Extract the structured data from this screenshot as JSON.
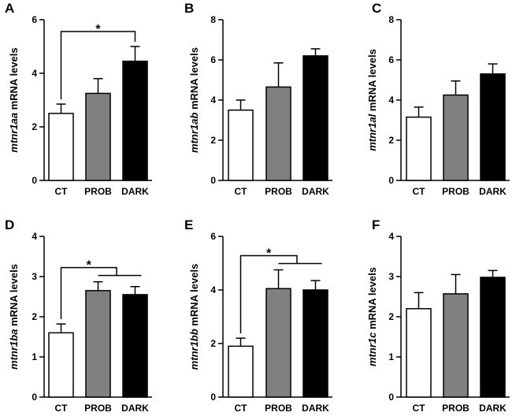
{
  "chart_data": [
    {
      "type": "bar",
      "panel": "A",
      "ylabel_gene": "mtnr1aa",
      "ylabel_rest": "mRNA levels",
      "categories": [
        "CT",
        "PROB",
        "DARK"
      ],
      "values": [
        2.5,
        3.25,
        4.45
      ],
      "errors": [
        0.35,
        0.55,
        0.55
      ],
      "bar_colors": [
        "#ffffff",
        "#808080",
        "#000000"
      ],
      "ylim": [
        0,
        6
      ],
      "yticks": [
        "0",
        "2",
        "4",
        "6"
      ],
      "significance": "*"
    },
    {
      "type": "bar",
      "panel": "B",
      "ylabel_gene": "mtnr1ab",
      "ylabel_rest": "mRNA levels",
      "categories": [
        "CT",
        "PROB",
        "DARK"
      ],
      "values": [
        3.5,
        4.65,
        6.2
      ],
      "errors": [
        0.5,
        1.2,
        0.35
      ],
      "bar_colors": [
        "#ffffff",
        "#808080",
        "#000000"
      ],
      "ylim": [
        0,
        8
      ],
      "yticks": [
        "0",
        "2",
        "4",
        "6",
        "8"
      ],
      "significance": ""
    },
    {
      "type": "bar",
      "panel": "C",
      "ylabel_gene": "mtnr1al",
      "ylabel_rest": "mRNA levels",
      "categories": [
        "CT",
        "PROB",
        "DARK"
      ],
      "values": [
        3.15,
        4.25,
        5.3
      ],
      "errors": [
        0.5,
        0.7,
        0.5
      ],
      "bar_colors": [
        "#ffffff",
        "#808080",
        "#000000"
      ],
      "ylim": [
        0,
        8
      ],
      "yticks": [
        "0",
        "2",
        "4",
        "6",
        "8"
      ],
      "significance": ""
    },
    {
      "type": "bar",
      "panel": "D",
      "ylabel_gene": "mtnr1ba",
      "ylabel_rest": "mRNA levels",
      "categories": [
        "CT",
        "PROB",
        "DARK"
      ],
      "values": [
        1.6,
        2.65,
        2.55
      ],
      "errors": [
        0.22,
        0.22,
        0.2
      ],
      "bar_colors": [
        "#ffffff",
        "#808080",
        "#000000"
      ],
      "ylim": [
        0,
        4
      ],
      "yticks": [
        "0",
        "1",
        "2",
        "3",
        "4"
      ],
      "significance": "*"
    },
    {
      "type": "bar",
      "panel": "E",
      "ylabel_gene": "mtnr1bb",
      "ylabel_rest": "mRNA levels",
      "categories": [
        "CT",
        "PROB",
        "DARK"
      ],
      "values": [
        1.9,
        4.05,
        4.0
      ],
      "errors": [
        0.3,
        0.7,
        0.35
      ],
      "bar_colors": [
        "#ffffff",
        "#808080",
        "#000000"
      ],
      "ylim": [
        0,
        6
      ],
      "yticks": [
        "0",
        "2",
        "4",
        "6"
      ],
      "significance": "*"
    },
    {
      "type": "bar",
      "panel": "F",
      "ylabel_gene": "mtnr1c",
      "ylabel_rest": "mRNA levels",
      "categories": [
        "CT",
        "PROB",
        "DARK"
      ],
      "values": [
        2.2,
        2.57,
        2.98
      ],
      "errors": [
        0.4,
        0.48,
        0.17
      ],
      "bar_colors": [
        "#ffffff",
        "#808080",
        "#000000"
      ],
      "ylim": [
        0,
        4
      ],
      "yticks": [
        "0",
        "1",
        "2",
        "3",
        "4"
      ],
      "significance": ""
    }
  ]
}
